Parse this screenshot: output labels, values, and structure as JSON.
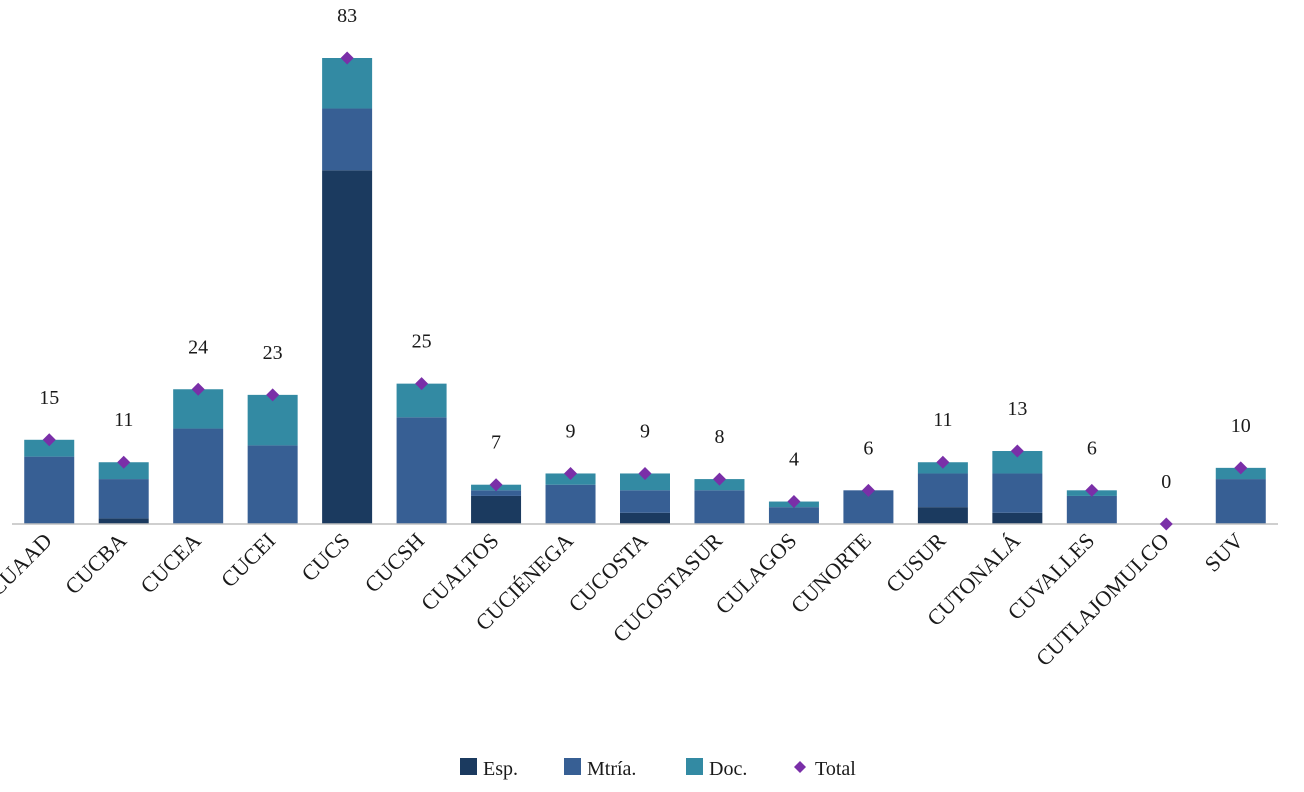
{
  "chart_data": {
    "type": "bar",
    "stacked": true,
    "title": "",
    "xlabel": "",
    "ylabel": "",
    "ylim": [
      0,
      83
    ],
    "grid": false,
    "legend_position": "bottom",
    "categories": [
      "CUAAD",
      "CUCBA",
      "CUCEA",
      "CUCEI",
      "CUCS",
      "CUCSH",
      "CUALTOS",
      "CUCIÉNEGA",
      "CUCOSTA",
      "CUCOSTASUR",
      "CULAGOS",
      "CUNORTE",
      "CUSUR",
      "CUTONALÁ",
      "CUVALLES",
      "CUTLAJOMULCO",
      "SUV"
    ],
    "series": [
      {
        "name": "Esp.",
        "color": "#1b3a5f",
        "values": [
          0,
          1,
          0,
          0,
          63,
          0,
          5,
          0,
          2,
          0,
          0,
          0,
          3,
          2,
          0,
          0,
          0
        ]
      },
      {
        "name": "Mtría.",
        "color": "#375f94",
        "values": [
          12,
          7,
          17,
          14,
          11,
          19,
          1,
          7,
          4,
          6,
          3,
          6,
          6,
          7,
          5,
          0,
          8
        ]
      },
      {
        "name": "Doc.",
        "color": "#338aa3",
        "values": [
          3,
          3,
          7,
          9,
          9,
          6,
          1,
          2,
          3,
          2,
          1,
          0,
          2,
          4,
          1,
          0,
          2
        ]
      }
    ],
    "total": {
      "name": "Total",
      "color": "#7a2fa8",
      "values": [
        15,
        11,
        24,
        23,
        83,
        25,
        7,
        9,
        9,
        8,
        4,
        6,
        11,
        13,
        6,
        0,
        10
      ]
    }
  }
}
